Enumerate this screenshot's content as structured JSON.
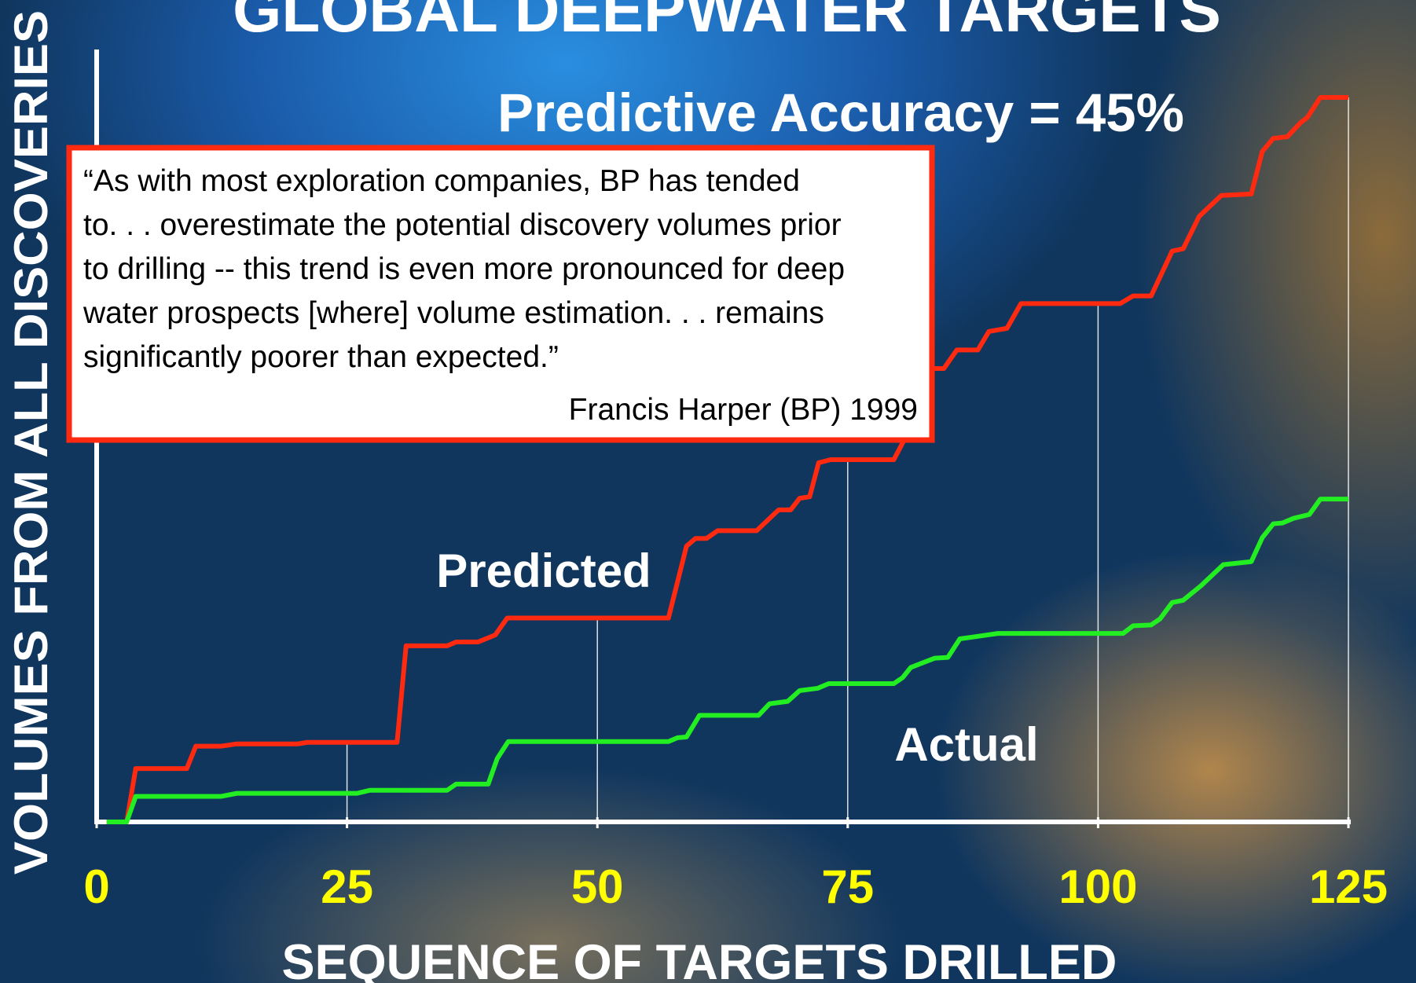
{
  "chart_data": {
    "type": "line",
    "title": "GLOBAL DEEPWATER TARGETS",
    "subtitle": "Predictive Accuracy = 45%",
    "y_label": "VOLUMES FROM ALL DISCOVERIES",
    "x_label": "SEQUENCE OF TARGETS DRILLED",
    "quote": {
      "lines": [
        "“As with most exploration companies, BP has tended",
        "to. . . overestimate the potential discovery volumes prior",
        "to drilling -- this trend is even more pronounced for deep",
        "water prospects [where] volume estimation. . . remains",
        "significantly poorer than expected.”"
      ],
      "attribution": "Francis Harper (BP) 1999"
    },
    "xlim": [
      0,
      125
    ],
    "xticks": [
      0,
      25,
      50,
      75,
      100,
      125
    ],
    "ylim": [
      0,
      100
    ],
    "grid": true,
    "series": [
      {
        "name": "Predicted",
        "color": "#ff2a10",
        "x": [
          1.0,
          3.0,
          3.9,
          9.0,
          9.9,
          12.4,
          14.0,
          20.1,
          21.0,
          30.0,
          30.9,
          35.0,
          35.9,
          38.1,
          39.8,
          41.0,
          57.1,
          58.9,
          59.8,
          60.9,
          62.0,
          65.9,
          68.1,
          69.3,
          70.2,
          71.2,
          72.1,
          73.3,
          79.6,
          80.5,
          81.9,
          83.2,
          84.6,
          85.9,
          88.0,
          89.1,
          90.9,
          92.3,
          102.2,
          103.5,
          105.3,
          107.4,
          108.5,
          110.1,
          112.3,
          115.3,
          116.4,
          117.5,
          118.9,
          120.2,
          120.9,
          122.2,
          125.0
        ],
        "values": [
          0,
          0,
          6.9,
          6.9,
          9.8,
          9.8,
          10.1,
          10.1,
          10.3,
          10.3,
          22.8,
          22.8,
          23.3,
          23.3,
          24.2,
          26.4,
          26.4,
          35.7,
          36.7,
          36.7,
          37.7,
          37.7,
          40.4,
          40.4,
          41.9,
          42.1,
          46.5,
          46.9,
          46.9,
          49.1,
          57.3,
          58.7,
          58.7,
          61.1,
          61.1,
          63.5,
          63.9,
          67.1,
          67.1,
          68.1,
          68.1,
          73.9,
          74.2,
          78.4,
          81.1,
          81.3,
          86.8,
          88.5,
          88.7,
          90.5,
          91.2,
          93.8,
          93.8
        ]
      },
      {
        "name": "Actual",
        "color": "#22ee22",
        "x": [
          1.0,
          3.0,
          3.9,
          12.4,
          14.0,
          26.0,
          27.3,
          35.0,
          35.9,
          39.1,
          40.0,
          41.1,
          57.1,
          58.0,
          58.9,
          60.2,
          66.1,
          67.2,
          69.0,
          70.2,
          72.0,
          73.1,
          79.6,
          80.5,
          81.3,
          82.3,
          83.7,
          85.0,
          86.2,
          87.3,
          90.0,
          102.5,
          103.5,
          105.3,
          106.2,
          107.4,
          108.5,
          110.3,
          112.5,
          115.3,
          116.4,
          117.5,
          118.4,
          119.5,
          121.1,
          122.2,
          125.0
        ],
        "values": [
          0,
          0,
          3.3,
          3.3,
          3.7,
          3.7,
          4.1,
          4.1,
          4.9,
          4.9,
          8.2,
          10.4,
          10.4,
          10.9,
          11.0,
          13.8,
          13.8,
          15.3,
          15.6,
          17.0,
          17.3,
          17.9,
          17.9,
          18.7,
          20.0,
          20.5,
          21.2,
          21.3,
          23.7,
          23.9,
          24.4,
          24.4,
          25.4,
          25.5,
          26.3,
          28.4,
          28.7,
          30.6,
          33.3,
          33.7,
          36.8,
          38.6,
          38.7,
          39.3,
          39.8,
          41.8,
          41.8
        ]
      }
    ]
  }
}
